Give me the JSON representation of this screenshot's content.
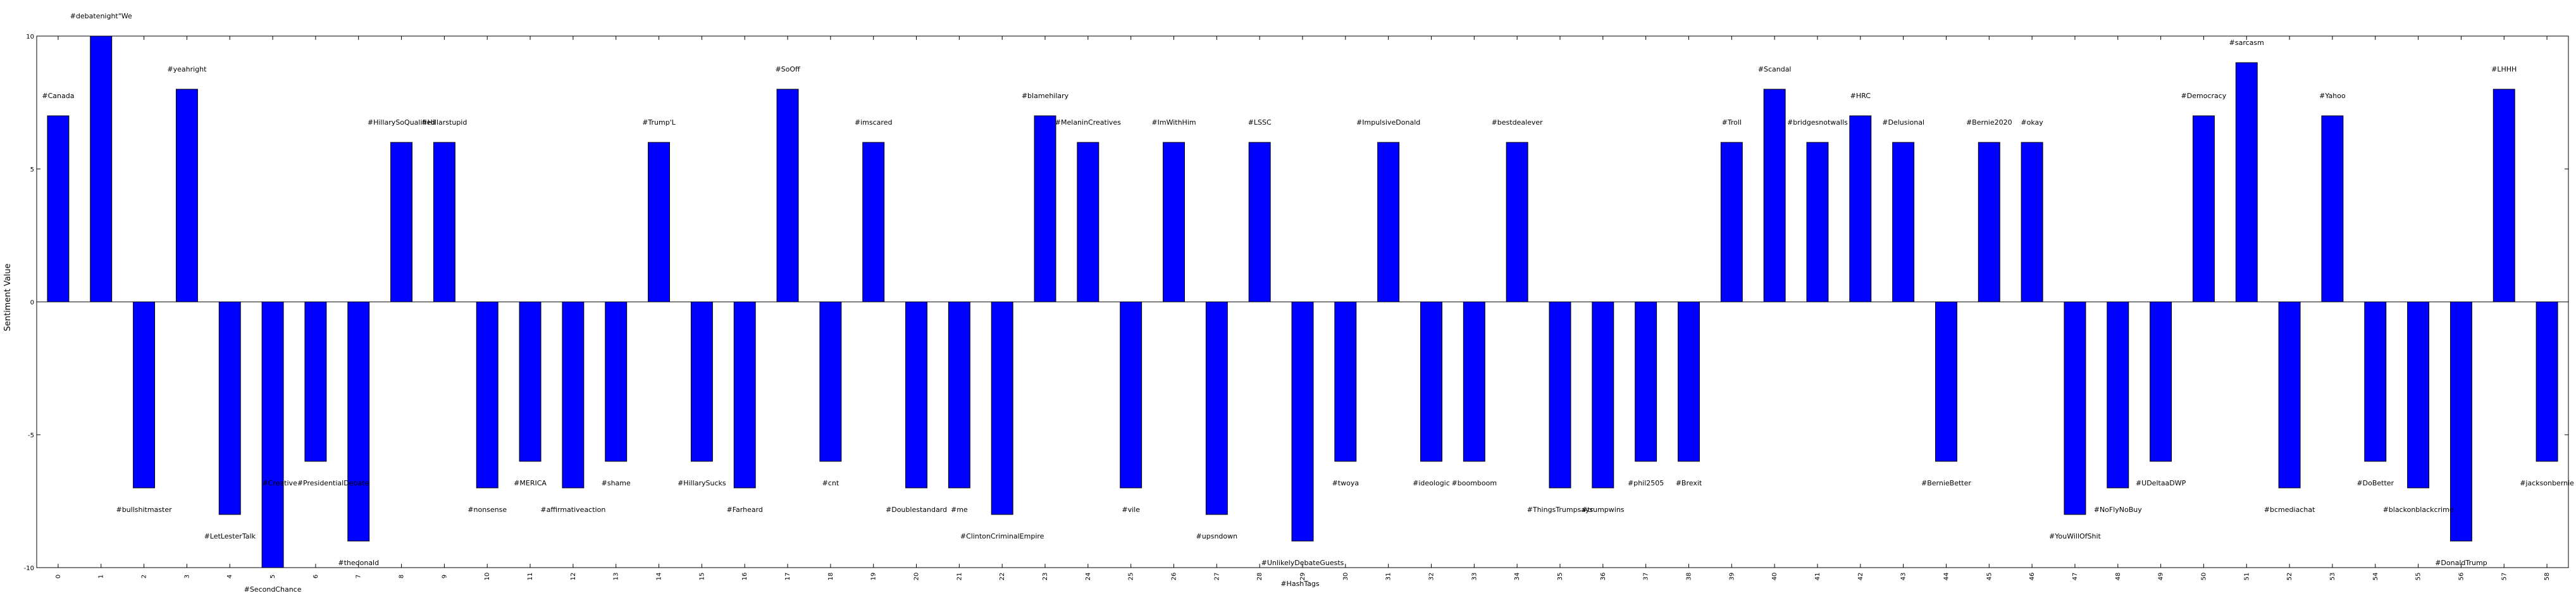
{
  "chart_data": {
    "type": "bar",
    "ylabel": "Sentiment Value",
    "xlabel": "",
    "title": "",
    "ylim": [
      -10,
      10
    ],
    "yticks": [
      -10,
      -5,
      0,
      5,
      10
    ],
    "bar_color": "#0000ff",
    "categories": [
      "0",
      "1",
      "2",
      "3",
      "4",
      "5",
      "6",
      "7",
      "8",
      "9",
      "10",
      "11",
      "12",
      "13",
      "14",
      "15",
      "16",
      "17",
      "18",
      "19",
      "20",
      "21",
      "22",
      "23",
      "24",
      "25",
      "26",
      "27",
      "28",
      "29",
      "30",
      "31",
      "32",
      "33",
      "34",
      "35",
      "36",
      "37",
      "38",
      "39",
      "40",
      "41",
      "42",
      "43",
      "44",
      "45",
      "46",
      "47",
      "48",
      "49",
      "50",
      "51",
      "52",
      "53",
      "54",
      "55",
      "56",
      "57",
      "58"
    ],
    "values": [
      7,
      10,
      -7,
      8,
      -8,
      -10,
      -6,
      -9,
      6,
      6,
      -7,
      -6,
      -7,
      -6,
      6,
      -6,
      -7,
      8,
      -6,
      6,
      -7,
      -7,
      -8,
      7,
      6,
      -7,
      6,
      -8,
      6,
      -9,
      -6,
      6,
      -6,
      -6,
      6,
      -7,
      -7,
      -6,
      -6,
      6,
      8,
      6,
      7,
      6,
      -6,
      6,
      6,
      -8,
      -7,
      -6,
      7,
      9,
      -7,
      7,
      -6,
      -7,
      -9,
      8,
      -6
    ],
    "hashtags": [
      "#Canada",
      "#debatenight\"We",
      "#bullshitmaster",
      "#yeahright",
      "#LetLesterTalk",
      "#SecondChance",
      "#Creative#PresidentialDebate",
      "#thedonald",
      "#HillarySoQualified",
      "#Hillarstupid",
      "#nonsense",
      "#MERICA",
      "#affirmativeaction",
      "#shame",
      "#Trump'L",
      "#HillarySucks",
      "#Farheard",
      "#SoOff",
      "#cnt",
      "#imscared",
      "#Doublestandard",
      "#me",
      "#ClintonCriminalEmpire",
      "#blamehilary",
      "#MelaninCreatives",
      "#vile",
      "#ImWithHim",
      "#upsndown",
      "#LSSC",
      "#UnlikelyDebateGuests",
      "#twoya",
      "#ImpulsiveDonald",
      "#ideologic",
      "#boomboom",
      "#bestdealever",
      "#ThingsTrumpsays",
      "#trumpwins",
      "#phil2505",
      "#Brexit",
      "#Troll",
      "#Scandal",
      "#bridgesnotwalls",
      "#HRC",
      "#Delusional",
      "#BernieBetter",
      "#Bernie2020",
      "#okay",
      "#YouWillOfShit",
      "#NoFlyNoBuy",
      "#UDeltaaDWP",
      "#Democracy",
      "#sarcasm",
      "#bcmediachat",
      "#Yahoo",
      "#DoBetter",
      "#blackonblackcrime",
      "#DonaldTrump",
      "#LHHH",
      "#jacksonbernie"
    ],
    "extra_label": "#HashTags"
  }
}
